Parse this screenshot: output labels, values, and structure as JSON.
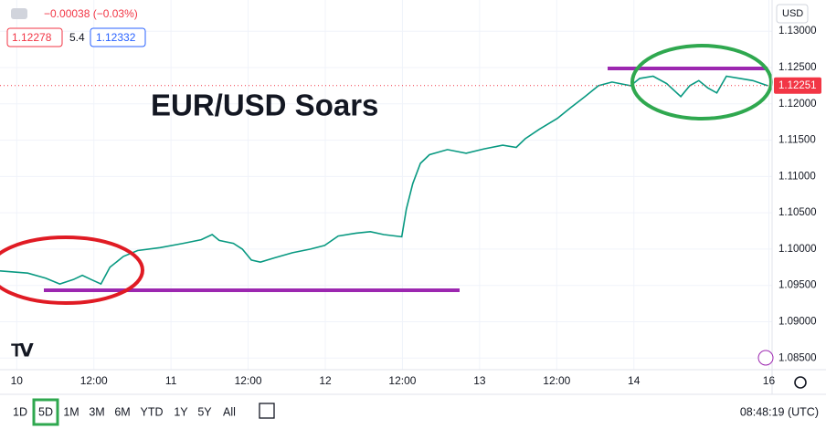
{
  "chart_data": {
    "type": "line",
    "title": "EUR/USD Soars",
    "currency": "USD",
    "change": "−0.00038 (−0.03%)",
    "bid": "1.12278",
    "spread": "5.4",
    "ask": "1.12332",
    "last_price": 1.12251,
    "x": [
      -2.6,
      1.7,
      4.5,
      6.7,
      8.8,
      10.2,
      11.6,
      13.1,
      14.5,
      16.6,
      18.8,
      22.3,
      25.9,
      28.7,
      30.4,
      31.5,
      33.7,
      35.1,
      36.5,
      37.9,
      40.1,
      42.9,
      45.7,
      47.9,
      50.0,
      52.8,
      55.0,
      57.1,
      59.9,
      60.6,
      61.6,
      62.8,
      64.2,
      67.0,
      69.9,
      72.7,
      75.6,
      77.7,
      79.1,
      81.3,
      84.1,
      86.2,
      88.4,
      90.5,
      92.6,
      95.5,
      96.9,
      99.0,
      101.1,
      103.3,
      104.7,
      106.1,
      107.5,
      108.9,
      110.4,
      112.5,
      114.5,
      116.8
    ],
    "series": [
      {
        "name": "EUR/USD",
        "color": "#089981",
        "values": [
          1.097,
          1.0967,
          1.096,
          1.0952,
          1.0958,
          1.0964,
          1.0958,
          1.0952,
          1.0975,
          1.099,
          1.0998,
          1.1002,
          1.1008,
          1.1013,
          1.102,
          1.1012,
          1.1008,
          1.1,
          1.0985,
          1.0982,
          1.0988,
          1.0995,
          1.1,
          1.1005,
          1.1018,
          1.1022,
          1.1024,
          1.102,
          1.1017,
          1.1055,
          1.109,
          1.1118,
          1.113,
          1.1137,
          1.1132,
          1.1138,
          1.1143,
          1.114,
          1.1152,
          1.1165,
          1.118,
          1.1195,
          1.121,
          1.1225,
          1.123,
          1.1225,
          1.1235,
          1.1238,
          1.1228,
          1.121,
          1.1225,
          1.1232,
          1.1222,
          1.1215,
          1.1238,
          1.1235,
          1.1232,
          1.1225
        ]
      }
    ],
    "xlim": [
      -2.6,
      117.5
    ],
    "xticks": [
      {
        "value": 0,
        "label": "10"
      },
      {
        "value": 12,
        "label": "12:00"
      },
      {
        "value": 24,
        "label": "11"
      },
      {
        "value": 36,
        "label": "12:00"
      },
      {
        "value": 48,
        "label": "12"
      },
      {
        "value": 60,
        "label": "12:00"
      },
      {
        "value": 72,
        "label": "13"
      },
      {
        "value": 84,
        "label": "12:00"
      },
      {
        "value": 96,
        "label": "14"
      },
      {
        "value": 117,
        "label": "16"
      }
    ],
    "ylim": [
      1.0834,
      1.1343
    ],
    "yticks": [
      {
        "value": 1.13,
        "label": "1.13000"
      },
      {
        "value": 1.125,
        "label": "1.12500"
      },
      {
        "value": 1.12,
        "label": "1.12000"
      },
      {
        "value": 1.115,
        "label": "1.11500"
      },
      {
        "value": 1.11,
        "label": "1.11000"
      },
      {
        "value": 1.105,
        "label": "1.10500"
      },
      {
        "value": 1.1,
        "label": "1.10000"
      },
      {
        "value": 1.095,
        "label": "1.09500"
      },
      {
        "value": 1.09,
        "label": "1.09000"
      },
      {
        "value": 1.085,
        "label": "1.08500"
      }
    ],
    "grid": true
  },
  "toolbar": {
    "ranges": [
      "1D",
      "5D",
      "1M",
      "3M",
      "6M",
      "YTD",
      "1Y",
      "5Y",
      "All"
    ],
    "selected_index": 1,
    "clock": "08:48:19 (UTC)"
  }
}
